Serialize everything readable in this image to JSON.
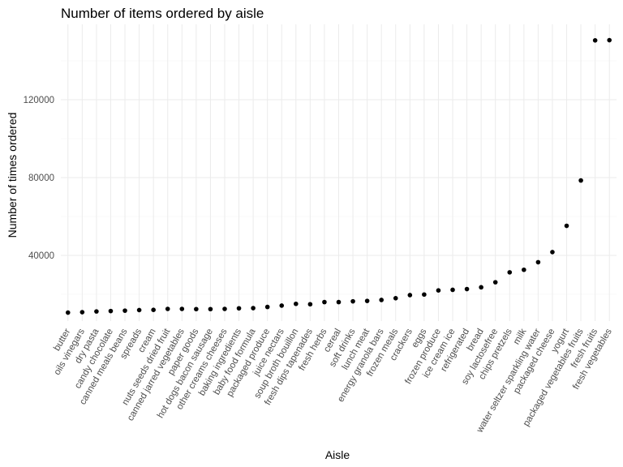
{
  "chart_data": {
    "type": "scatter",
    "title": "Number of items ordered by aisle",
    "xlabel": "Aisle",
    "ylabel": "Number of times ordered",
    "ylim": [
      0,
      150000
    ],
    "yticks": [
      40000,
      80000,
      120000
    ],
    "grid": true,
    "categories": [
      "butter",
      "oils vinegars",
      "dry pasta",
      "candy chocolate",
      "canned meals beans",
      "spreads",
      "cream",
      "nuts seeds dried fruit",
      "canned jarred vegetables",
      "paper goods",
      "hot dogs bacon sausage",
      "other creams cheeses",
      "baking ingredients",
      "baby food formula",
      "packaged produce",
      "juice nectars",
      "soup broth bouillon",
      "fresh dips tapenades",
      "fresh herbs",
      "cereal",
      "soft drinks",
      "lunch meat",
      "energy granola bars",
      "frozen meals",
      "crackers",
      "eggs",
      "frozen produce",
      "ice cream ice",
      "refrigerated",
      "bread",
      "soy lactosefree",
      "chips pretzels",
      "milk",
      "water seltzer sparkling water",
      "packaged cheese",
      "yogurt",
      "packaged vegetables fruits",
      "fresh fruits",
      "fresh vegetables"
    ],
    "values": [
      10600,
      10800,
      11200,
      11400,
      11600,
      11900,
      12000,
      12500,
      12500,
      12400,
      12400,
      12500,
      12800,
      12900,
      13500,
      14200,
      15100,
      14900,
      16000,
      16000,
      16400,
      16600,
      17100,
      18000,
      19600,
      19900,
      22000,
      22300,
      22700,
      23600,
      26200,
      31300,
      32600,
      36500,
      41700,
      55200,
      78500,
      150500,
      150600
    ]
  }
}
